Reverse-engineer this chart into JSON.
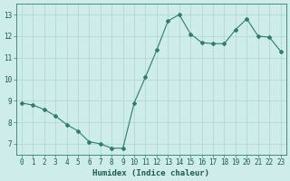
{
  "x": [
    0,
    1,
    2,
    3,
    4,
    5,
    6,
    7,
    8,
    9,
    10,
    11,
    12,
    13,
    14,
    15,
    16,
    17,
    18,
    19,
    20,
    21,
    22,
    23
  ],
  "y": [
    8.9,
    8.8,
    8.6,
    8.3,
    7.9,
    7.6,
    7.1,
    7.0,
    6.8,
    6.8,
    8.9,
    10.1,
    11.35,
    12.7,
    13.0,
    12.1,
    11.7,
    11.65,
    11.65,
    12.3,
    12.8,
    12.0,
    11.95,
    11.3
  ],
  "line_color": "#2e7d6e",
  "marker": "D",
  "marker_size": 2.0,
  "bg_color": "#ceecea",
  "grid_color": "#aed4d0",
  "xlabel": "Humidex (Indice chaleur)",
  "ylim": [
    6.5,
    13.5
  ],
  "xlim": [
    -0.5,
    23.5
  ],
  "yticks": [
    7,
    8,
    9,
    10,
    11,
    12,
    13
  ],
  "xticks": [
    0,
    1,
    2,
    3,
    4,
    5,
    6,
    7,
    8,
    9,
    10,
    11,
    12,
    13,
    14,
    15,
    16,
    17,
    18,
    19,
    20,
    21,
    22,
    23
  ],
  "tick_color": "#2e7d6e",
  "label_color": "#1a5c52",
  "tick_fontsize": 5.5,
  "xlabel_fontsize": 6.5
}
